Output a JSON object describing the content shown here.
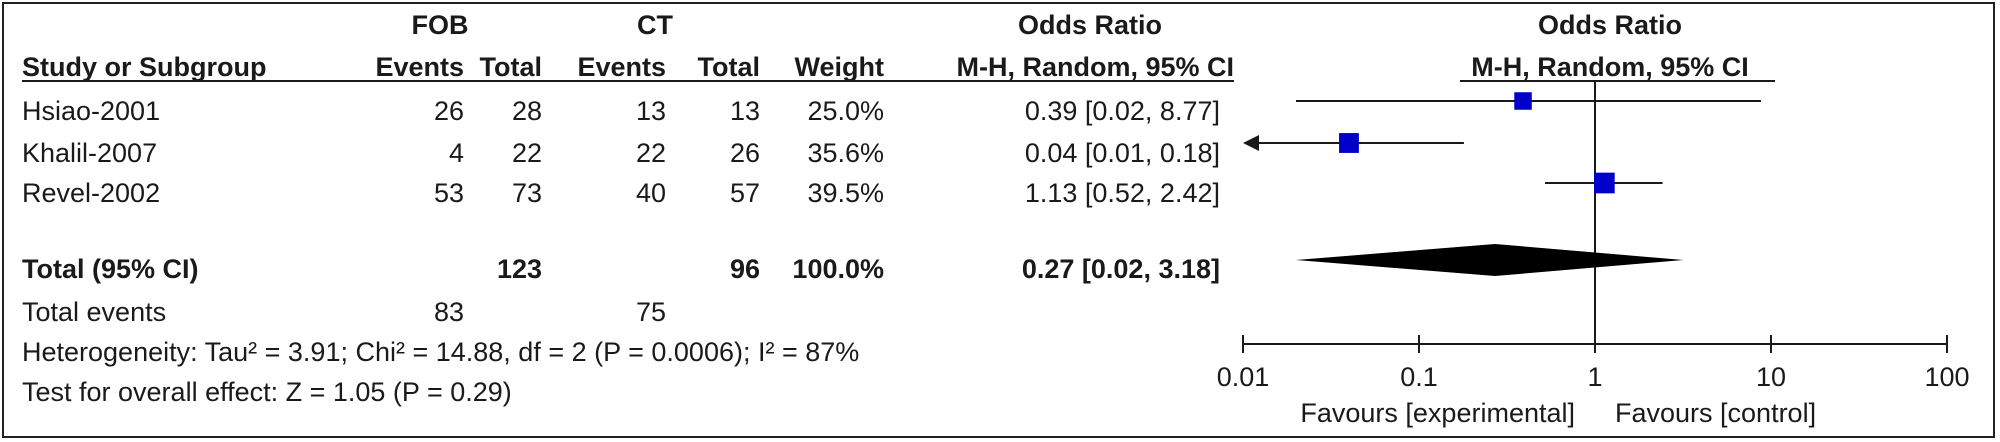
{
  "header": {
    "group_fob": "FOB",
    "group_ct": "CT",
    "or_title": "Odds Ratio",
    "study_col": "Study or Subgroup",
    "events": "Events",
    "total": "Total",
    "weight": "Weight",
    "or_method": "M-H, Random, 95% CI",
    "plot_title": "Odds Ratio",
    "plot_method": "M-H, Random, 95% CI"
  },
  "studies": [
    {
      "name": "Hsiao-2001",
      "fob_events": "26",
      "fob_total": "28",
      "ct_events": "13",
      "ct_total": "13",
      "weight": "25.0%",
      "ci_text": "0.39 [0.02, 8.77]"
    },
    {
      "name": "Khalil-2007",
      "fob_events": "4",
      "fob_total": "22",
      "ct_events": "22",
      "ct_total": "26",
      "weight": "35.6%",
      "ci_text": "0.04 [0.01, 0.18]"
    },
    {
      "name": "Revel-2002",
      "fob_events": "53",
      "fob_total": "73",
      "ct_events": "40",
      "ct_total": "57",
      "weight": "39.5%",
      "ci_text": "1.13 [0.52, 2.42]"
    }
  ],
  "total": {
    "label": "Total (95% CI)",
    "fob_total": "123",
    "ct_total": "96",
    "weight": "100.0%",
    "ci_text": "0.27 [0.02, 3.18]"
  },
  "total_events": {
    "label": "Total events",
    "fob": "83",
    "ct": "75"
  },
  "heterogeneity": "Heterogeneity: Tau² = 3.91; Chi² = 14.88, df = 2 (P = 0.0006); I² = 87%",
  "overall_effect": "Test for overall effect: Z = 1.05 (P = 0.29)",
  "chart_data": {
    "type": "forest",
    "x_scale": "log",
    "xlim": [
      0.01,
      100
    ],
    "ticks": [
      0.01,
      0.1,
      1,
      10,
      100
    ],
    "tick_labels": [
      "0.01",
      "0.1",
      "1",
      "10",
      "100"
    ],
    "reference_line": 1,
    "favours_left": "Favours [experimental]",
    "favours_right": "Favours [control]",
    "studies": [
      {
        "name": "Hsiao-2001",
        "or": 0.39,
        "lower": 0.02,
        "upper": 8.77,
        "weight": 25.0
      },
      {
        "name": "Khalil-2007",
        "or": 0.04,
        "lower": 0.01,
        "upper": 0.18,
        "weight": 35.6,
        "lower_truncated": true
      },
      {
        "name": "Revel-2002",
        "or": 1.13,
        "lower": 0.52,
        "upper": 2.42,
        "weight": 39.5
      }
    ],
    "pooled": {
      "or": 0.27,
      "lower": 0.02,
      "upper": 3.18
    },
    "colors": {
      "square": "#0000c8",
      "diamond": "#000000",
      "line": "#1a1a1a"
    }
  }
}
